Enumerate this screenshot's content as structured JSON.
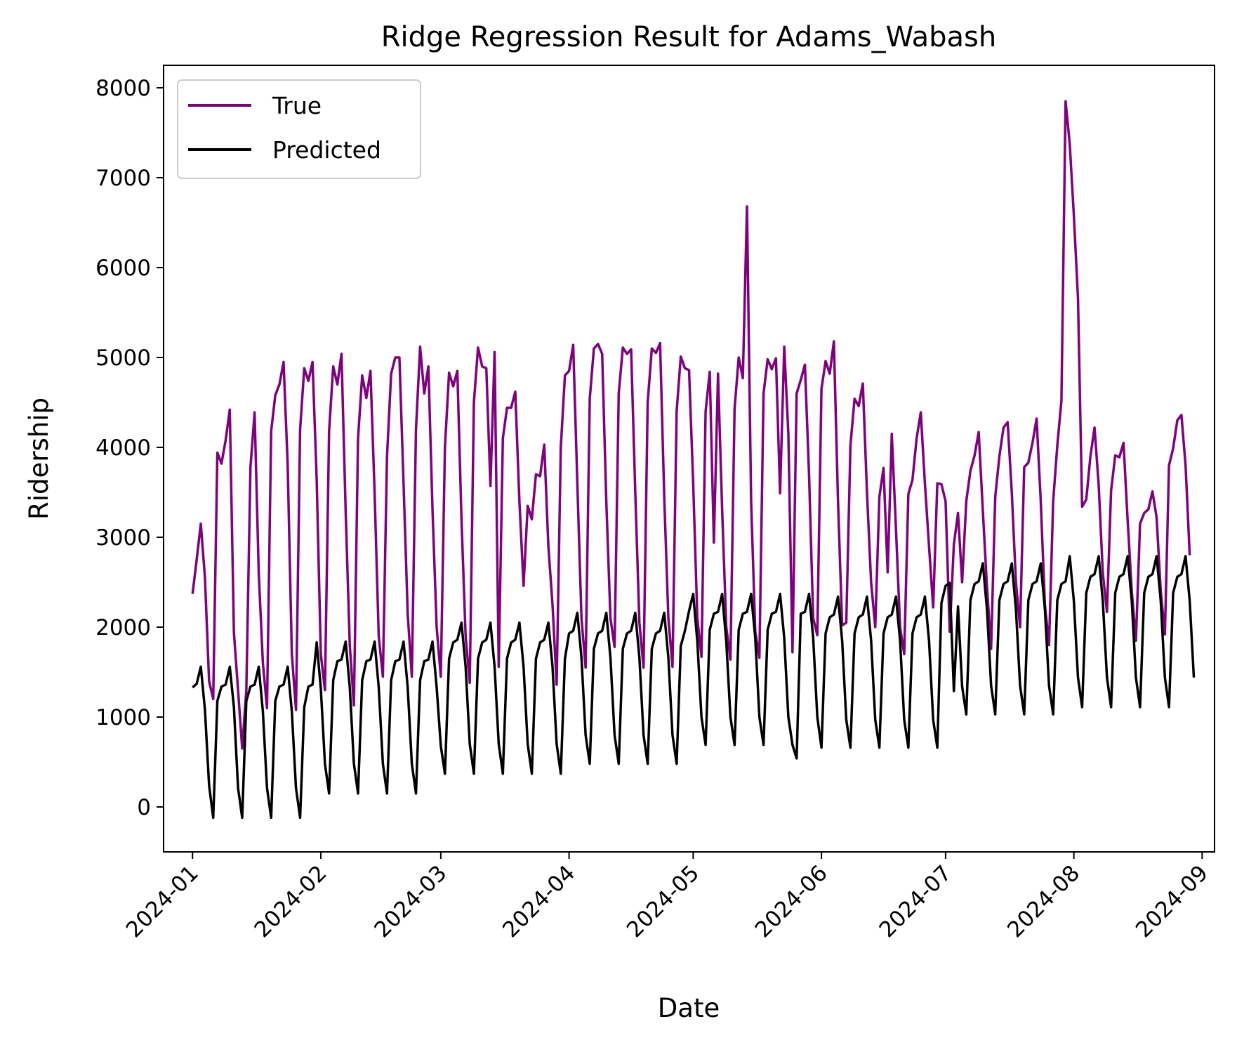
{
  "chart_data": {
    "type": "line",
    "title": "Ridge Regression Result for Adams_Wabash",
    "xlabel": "Date",
    "ylabel": "Ridership",
    "xlim": [
      "2023-12-25",
      "2024-09-04"
    ],
    "ylim": [
      -500,
      8250
    ],
    "x_ticks": [
      "2024-01",
      "2024-02",
      "2024-03",
      "2024-04",
      "2024-05",
      "2024-06",
      "2024-07",
      "2024-08",
      "2024-09"
    ],
    "y_ticks": [
      0,
      1000,
      2000,
      3000,
      4000,
      5000,
      6000,
      7000,
      8000
    ],
    "grid": false,
    "legend_position": "upper-left",
    "start_date": "2024-01-01",
    "series": [
      {
        "name": "True",
        "color": "#800080",
        "values": [
          2370,
          2750,
          3150,
          2550,
          1400,
          1200,
          3940,
          3820,
          4080,
          4420,
          1940,
          1300,
          650,
          1300,
          3780,
          4390,
          2600,
          1600,
          1100,
          4180,
          4580,
          4700,
          4950,
          3800,
          1700,
          1080,
          4200,
          4880,
          4740,
          4950,
          3650,
          1700,
          1300,
          4180,
          4900,
          4700,
          5040,
          3300,
          1800,
          1130,
          4100,
          4800,
          4550,
          4850,
          3500,
          1900,
          1450,
          3900,
          4820,
          5000,
          5000,
          3600,
          2150,
          1450,
          4200,
          5120,
          4600,
          4900,
          3300,
          2000,
          1450,
          4000,
          4830,
          4680,
          4850,
          3200,
          1900,
          1380,
          4500,
          5110,
          4900,
          4880,
          3570,
          5060,
          1560,
          4100,
          4440,
          4440,
          4620,
          3400,
          2460,
          3350,
          3200,
          3700,
          3680,
          4030,
          2900,
          2250,
          1360,
          4000,
          4800,
          4850,
          5140,
          3600,
          2100,
          1550,
          4540,
          5100,
          5150,
          5040,
          3400,
          2100,
          1780,
          4600,
          5110,
          5040,
          5090,
          3500,
          2050,
          1550,
          4500,
          5100,
          5050,
          5160,
          3450,
          2100,
          1560,
          4400,
          5010,
          4880,
          4860,
          3600,
          2100,
          1670,
          4400,
          4840,
          2940,
          4820,
          3300,
          2000,
          1640,
          4430,
          5000,
          4770,
          6680,
          3400,
          1950,
          1660,
          4600,
          4980,
          4870,
          4990,
          3490,
          5120,
          4150,
          1720,
          4600,
          4750,
          4920,
          3700,
          2100,
          1910,
          4650,
          4960,
          4820,
          5180,
          3400,
          2020,
          2050,
          4020,
          4540,
          4460,
          4710,
          3500,
          2500,
          2000,
          3450,
          3770,
          2610,
          4150,
          3100,
          2000,
          1700,
          3480,
          3640,
          4100,
          4390,
          3600,
          2900,
          2220,
          3600,
          3590,
          3400,
          1950,
          2920,
          3270,
          2500,
          3400,
          3740,
          3910,
          4170,
          3300,
          2450,
          1760,
          3450,
          3900,
          4220,
          4280,
          3500,
          2500,
          2000,
          3780,
          3830,
          4050,
          4320,
          3400,
          2250,
          1800,
          3400,
          4020,
          4520,
          7850,
          7380,
          6580,
          5660,
          3340,
          3420,
          3900,
          4220,
          3580,
          2600,
          2170,
          3520,
          3910,
          3890,
          4050,
          3190,
          2400,
          1850,
          3150,
          3270,
          3310,
          3510,
          3220,
          2400,
          1920,
          3800,
          3990,
          4300,
          4360,
          3800,
          2800
        ]
      },
      {
        "name": "Predicted",
        "color": "#000000",
        "values": [
          1330,
          1370,
          1560,
          1080,
          240,
          -120,
          1180,
          1340,
          1360,
          1560,
          1110,
          210,
          -120,
          1180,
          1340,
          1360,
          1560,
          1060,
          210,
          -120,
          1180,
          1340,
          1360,
          1560,
          1060,
          210,
          -120,
          1110,
          1340,
          1360,
          1830,
          1320,
          480,
          150,
          1410,
          1620,
          1640,
          1840,
          1330,
          480,
          150,
          1410,
          1620,
          1640,
          1840,
          1330,
          480,
          150,
          1410,
          1620,
          1640,
          1840,
          1330,
          480,
          150,
          1410,
          1620,
          1640,
          1840,
          1330,
          680,
          370,
          1650,
          1830,
          1860,
          2050,
          1560,
          700,
          370,
          1650,
          1830,
          1860,
          2050,
          1560,
          700,
          370,
          1650,
          1830,
          1860,
          2050,
          1560,
          700,
          370,
          1650,
          1830,
          1860,
          2050,
          1560,
          700,
          370,
          1650,
          1930,
          1960,
          2160,
          1660,
          800,
          480,
          1760,
          1930,
          1960,
          2160,
          1660,
          800,
          480,
          1760,
          1930,
          1960,
          2160,
          1660,
          800,
          480,
          1760,
          1930,
          1960,
          2160,
          1660,
          800,
          480,
          1790,
          1960,
          2180,
          2370,
          1840,
          1000,
          690,
          1970,
          2150,
          2170,
          2370,
          1840,
          1000,
          690,
          1970,
          2150,
          2170,
          2370,
          1880,
          1000,
          690,
          1970,
          2150,
          2170,
          2370,
          1880,
          1000,
          690,
          540,
          2150,
          2170,
          2370,
          1880,
          1000,
          660,
          1930,
          2110,
          2140,
          2340,
          1850,
          970,
          660,
          1930,
          2110,
          2140,
          2340,
          1850,
          970,
          660,
          1930,
          2110,
          2140,
          2340,
          1850,
          970,
          660,
          1930,
          2110,
          2140,
          2340,
          1850,
          970,
          660,
          2270,
          2460,
          2490,
          1290,
          2230,
          1340,
          1030,
          2300,
          2480,
          2510,
          2710,
          2200,
          1350,
          1030,
          2300,
          2480,
          2510,
          2710,
          2200,
          1350,
          1030,
          2300,
          2480,
          2510,
          2710,
          2200,
          1350,
          1030,
          2300,
          2480,
          2510,
          2790,
          2290,
          1440,
          1110,
          2380,
          2560,
          2590,
          2790,
          2290,
          1440,
          1110,
          2380,
          2560,
          2590,
          2790,
          2290,
          1440,
          1110,
          2380,
          2560,
          2590,
          2790,
          2290,
          1440,
          1110,
          2380,
          2560,
          2590,
          2790,
          2290,
          1440
        ]
      }
    ]
  }
}
